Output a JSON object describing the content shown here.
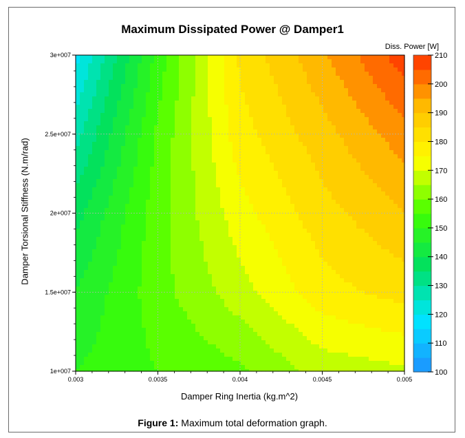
{
  "chart_data": {
    "type": "heatmap",
    "title": "Maximum Dissipated Power @ Damper1",
    "xlabel": "Damper Ring Inertia (kg.m^2)",
    "ylabel": "Damper Torsional Stiffness (N.m/rad)",
    "xlim": [
      0.003,
      0.005
    ],
    "ylim": [
      10000000,
      30000000
    ],
    "x_ticks": [
      0.003,
      0.0035,
      0.004,
      0.0045,
      0.005
    ],
    "x_tick_labels": [
      "0.003",
      "0.0035",
      "0.004",
      "0.0045",
      "0.005"
    ],
    "y_ticks": [
      10000000,
      15000000,
      20000000,
      25000000,
      30000000
    ],
    "y_tick_labels": [
      "1e+007",
      "1.5e+007",
      "2e+007",
      "2.5e+007",
      "3e+007"
    ],
    "grid": true,
    "colorbar": {
      "title": "Diss. Power [W]",
      "range": [
        100,
        210
      ],
      "ticks": [
        100,
        110,
        120,
        130,
        140,
        150,
        160,
        170,
        180,
        190,
        200,
        210
      ],
      "tick_labels": [
        "100",
        "110",
        "120",
        "130",
        "140",
        "150",
        "160",
        "170",
        "180",
        "190",
        "200",
        "210"
      ],
      "levels": 22,
      "colors_low_to_high": [
        "#1e90ff",
        "#00e6ff",
        "#00e060",
        "#40ff00",
        "#ffff00",
        "#ffc000",
        "#ff3000"
      ]
    },
    "x": [
      0.003,
      0.0035,
      0.004,
      0.0045,
      0.005
    ],
    "y": [
      10000000,
      15000000,
      20000000,
      25000000,
      30000000
    ],
    "z": [
      [
        150,
        155,
        159,
        167,
        169
      ],
      [
        145,
        158,
        168,
        178,
        182
      ],
      [
        138,
        158,
        173,
        183,
        190
      ],
      [
        128,
        156,
        178,
        188,
        198
      ],
      [
        118,
        152,
        181,
        194,
        208
      ]
    ]
  },
  "caption": {
    "label": "Figure 1:",
    "text": " Maximum total deformation graph."
  }
}
